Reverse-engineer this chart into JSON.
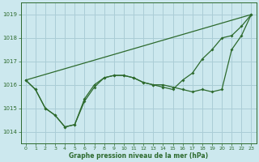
{
  "title": "Graphe pression niveau de la mer (hPa)",
  "bg_color": "#cce8ee",
  "grid_color": "#aacdd6",
  "line_color": "#2d6a2d",
  "ylim": [
    1013.5,
    1019.5
  ],
  "yticks": [
    1014,
    1015,
    1016,
    1017,
    1018,
    1019
  ],
  "xlim": [
    -0.5,
    23.5
  ],
  "xticks": [
    0,
    1,
    2,
    3,
    4,
    5,
    6,
    7,
    8,
    9,
    10,
    11,
    12,
    13,
    14,
    15,
    16,
    17,
    18,
    19,
    20,
    21,
    22,
    23
  ],
  "series1_x": [
    0,
    1,
    2,
    3,
    4,
    5,
    6,
    7,
    8,
    9,
    10,
    11,
    12,
    13,
    14,
    15,
    16,
    17,
    18,
    19,
    20,
    21,
    22,
    23
  ],
  "series1_y": [
    1016.2,
    1015.8,
    1015.0,
    1014.7,
    1014.2,
    1014.3,
    1015.3,
    1015.9,
    1016.3,
    1016.4,
    1016.4,
    1016.3,
    1016.1,
    1016.0,
    1016.0,
    1015.9,
    1015.8,
    1015.7,
    1015.8,
    1015.7,
    1015.8,
    1017.5,
    1018.1,
    1019.0
  ],
  "series2_x": [
    0,
    1,
    2,
    3,
    4,
    5,
    6,
    7,
    8,
    9,
    10,
    11,
    12,
    13,
    14,
    15,
    16,
    17,
    18,
    19,
    20,
    21,
    22,
    23
  ],
  "series2_y": [
    1016.2,
    1015.8,
    1015.0,
    1014.7,
    1014.2,
    1014.3,
    1015.4,
    1016.0,
    1016.3,
    1016.4,
    1016.4,
    1016.3,
    1016.1,
    1016.0,
    1015.9,
    1015.8,
    1016.2,
    1016.5,
    1017.1,
    1017.5,
    1018.0,
    1018.1,
    1018.5,
    1019.0
  ],
  "series3_x": [
    0,
    23
  ],
  "series3_y": [
    1016.2,
    1019.0
  ]
}
